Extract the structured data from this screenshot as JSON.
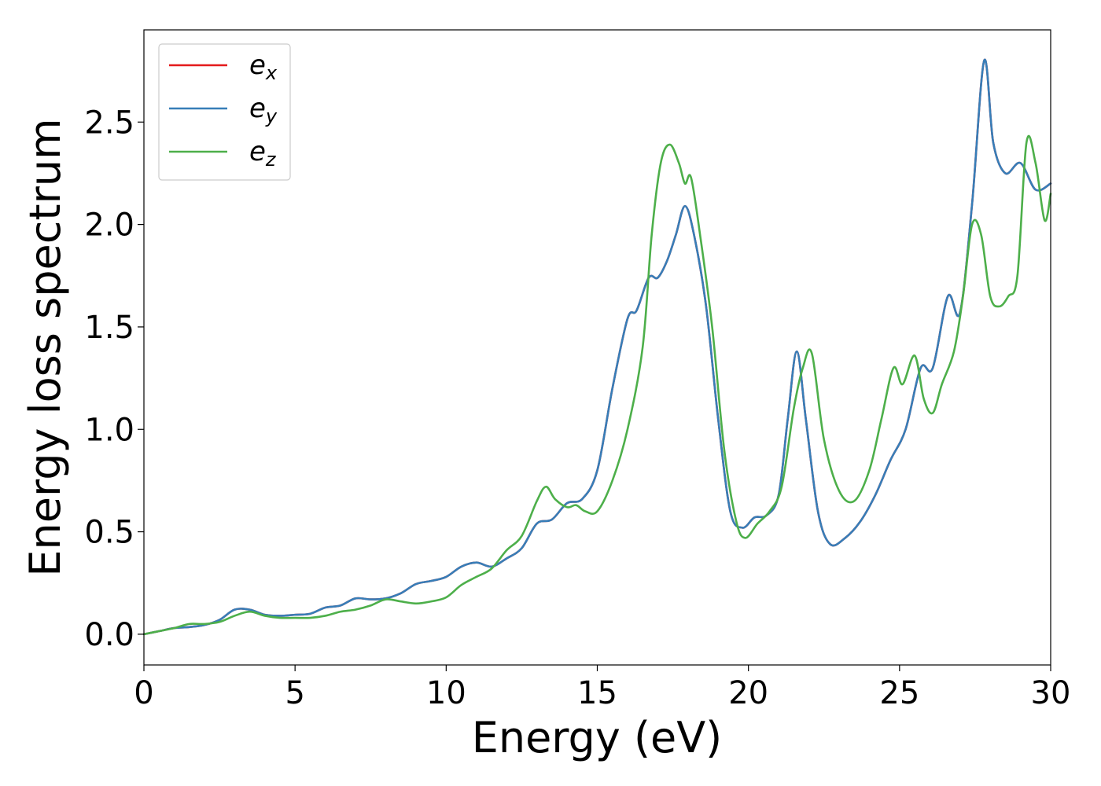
{
  "chart_data": {
    "type": "line",
    "xlabel": "Energy (eV)",
    "ylabel": "Energy loss spectrum",
    "xlim": [
      0,
      30
    ],
    "ylim": [
      -0.15,
      2.95
    ],
    "grid": false,
    "legend_position": "top-left",
    "xticks": [
      "0",
      "5",
      "10",
      "15",
      "20",
      "25",
      "30"
    ],
    "yticks": [
      "0.0",
      "0.5",
      "1.0",
      "1.5",
      "2.0",
      "2.5"
    ],
    "series": [
      {
        "name": "e",
        "sub": "x",
        "color": "#e41a1c",
        "x": [
          0,
          0.5,
          1,
          1.5,
          2,
          2.5,
          3,
          3.5,
          4,
          4.5,
          5,
          5.5,
          6,
          6.5,
          7,
          7.5,
          8,
          8.5,
          9,
          9.5,
          10,
          10.5,
          11,
          11.5,
          12,
          12.5,
          13,
          13.5,
          14,
          14.5,
          15,
          15.5,
          16,
          16.3,
          16.7,
          17,
          17.3,
          17.6,
          17.9,
          18.2,
          18.6,
          19,
          19.4,
          19.8,
          20.2,
          20.6,
          21,
          21.3,
          21.6,
          21.9,
          22.3,
          22.7,
          23.2,
          23.7,
          24.2,
          24.7,
          25.2,
          25.7,
          26.1,
          26.6,
          27,
          27.4,
          27.8,
          28.1,
          28.5,
          29,
          29.5,
          30
        ],
        "y": [
          0,
          0.015,
          0.03,
          0.035,
          0.045,
          0.07,
          0.12,
          0.12,
          0.095,
          0.09,
          0.095,
          0.1,
          0.13,
          0.14,
          0.175,
          0.17,
          0.175,
          0.2,
          0.245,
          0.26,
          0.28,
          0.33,
          0.35,
          0.33,
          0.37,
          0.42,
          0.54,
          0.56,
          0.64,
          0.66,
          0.8,
          1.2,
          1.54,
          1.58,
          1.74,
          1.74,
          1.82,
          1.95,
          2.09,
          1.95,
          1.6,
          1.05,
          0.6,
          0.52,
          0.57,
          0.58,
          0.68,
          1.05,
          1.38,
          1.05,
          0.6,
          0.44,
          0.47,
          0.55,
          0.68,
          0.85,
          1.0,
          1.3,
          1.3,
          1.65,
          1.57,
          2.1,
          2.8,
          2.4,
          2.25,
          2.3,
          2.17,
          2.2
        ]
      },
      {
        "name": "e",
        "sub": "y",
        "color": "#377eb8",
        "x": [
          0,
          0.5,
          1,
          1.5,
          2,
          2.5,
          3,
          3.5,
          4,
          4.5,
          5,
          5.5,
          6,
          6.5,
          7,
          7.5,
          8,
          8.5,
          9,
          9.5,
          10,
          10.5,
          11,
          11.5,
          12,
          12.5,
          13,
          13.5,
          14,
          14.5,
          15,
          15.5,
          16,
          16.3,
          16.7,
          17,
          17.3,
          17.6,
          17.9,
          18.2,
          18.6,
          19,
          19.4,
          19.8,
          20.2,
          20.6,
          21,
          21.3,
          21.6,
          21.9,
          22.3,
          22.7,
          23.2,
          23.7,
          24.2,
          24.7,
          25.2,
          25.7,
          26.1,
          26.6,
          27,
          27.4,
          27.8,
          28.1,
          28.5,
          29,
          29.5,
          30
        ],
        "y": [
          0,
          0.015,
          0.03,
          0.035,
          0.045,
          0.07,
          0.12,
          0.12,
          0.095,
          0.09,
          0.095,
          0.1,
          0.13,
          0.14,
          0.175,
          0.17,
          0.175,
          0.2,
          0.245,
          0.26,
          0.28,
          0.33,
          0.35,
          0.33,
          0.37,
          0.42,
          0.54,
          0.56,
          0.64,
          0.66,
          0.8,
          1.2,
          1.54,
          1.58,
          1.74,
          1.74,
          1.82,
          1.95,
          2.09,
          1.95,
          1.6,
          1.05,
          0.6,
          0.52,
          0.57,
          0.58,
          0.68,
          1.05,
          1.38,
          1.05,
          0.6,
          0.44,
          0.47,
          0.55,
          0.68,
          0.85,
          1.0,
          1.3,
          1.3,
          1.65,
          1.57,
          2.1,
          2.8,
          2.4,
          2.25,
          2.3,
          2.17,
          2.2
        ]
      },
      {
        "name": "e",
        "sub": "z",
        "color": "#4daf4a",
        "x": [
          0,
          0.5,
          1,
          1.5,
          2,
          2.5,
          3,
          3.5,
          4,
          4.5,
          5,
          5.5,
          6,
          6.5,
          7,
          7.5,
          8,
          8.5,
          9,
          9.5,
          10,
          10.5,
          11,
          11.5,
          12,
          12.5,
          13,
          13.3,
          13.6,
          14,
          14.3,
          14.6,
          15,
          15.5,
          16,
          16.5,
          16.8,
          17.1,
          17.4,
          17.7,
          17.9,
          18.1,
          18.4,
          18.8,
          19.2,
          19.6,
          19.9,
          20.3,
          20.7,
          21.1,
          21.5,
          21.8,
          22.1,
          22.5,
          23,
          23.5,
          24,
          24.4,
          24.8,
          25.1,
          25.5,
          25.8,
          26.1,
          26.4,
          26.8,
          27.1,
          27.4,
          27.7,
          28,
          28.3,
          28.6,
          28.9,
          29.2,
          29.5,
          29.8,
          30
        ],
        "y": [
          0,
          0.015,
          0.03,
          0.05,
          0.05,
          0.06,
          0.09,
          0.11,
          0.09,
          0.08,
          0.08,
          0.08,
          0.09,
          0.11,
          0.12,
          0.14,
          0.17,
          0.16,
          0.15,
          0.16,
          0.18,
          0.24,
          0.28,
          0.32,
          0.41,
          0.48,
          0.65,
          0.72,
          0.66,
          0.62,
          0.63,
          0.6,
          0.6,
          0.75,
          1.0,
          1.4,
          1.95,
          2.3,
          2.39,
          2.3,
          2.2,
          2.23,
          1.95,
          1.5,
          0.9,
          0.55,
          0.47,
          0.54,
          0.6,
          0.72,
          1.1,
          1.3,
          1.37,
          0.95,
          0.7,
          0.65,
          0.8,
          1.05,
          1.3,
          1.22,
          1.36,
          1.15,
          1.08,
          1.22,
          1.38,
          1.65,
          2.0,
          1.95,
          1.65,
          1.6,
          1.65,
          1.75,
          2.4,
          2.3,
          2.02,
          2.15
        ]
      }
    ]
  }
}
